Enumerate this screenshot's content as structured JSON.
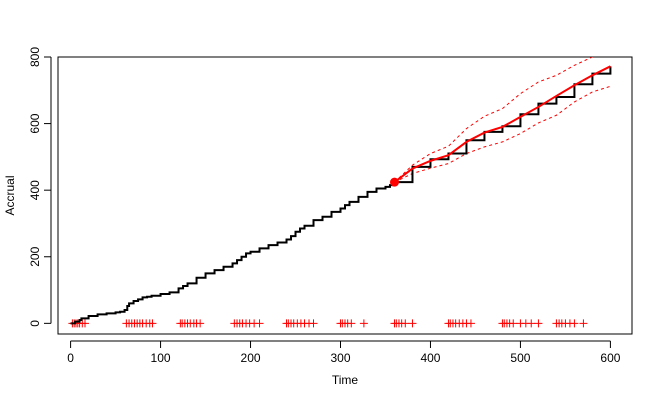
{
  "chart_data": {
    "type": "line",
    "title": "",
    "xlabel": "Time",
    "ylabel": "Accrual",
    "xlim": [
      -14,
      624
    ],
    "ylim": [
      -32,
      800
    ],
    "x_ticks": [
      0,
      100,
      200,
      300,
      400,
      500,
      600
    ],
    "y_ticks": [
      0,
      200,
      400,
      600,
      800
    ],
    "grid": false,
    "legend": "none",
    "colors": {
      "observed": "#000000",
      "prediction": "#ff0000",
      "bounds": "#ff0000",
      "events": "#ff0000"
    },
    "observed_accrual": {
      "x": [
        0,
        5,
        10,
        12,
        20,
        30,
        40,
        50,
        55,
        60,
        63,
        65,
        70,
        75,
        80,
        85,
        90,
        100,
        110,
        120,
        125,
        130,
        140,
        150,
        160,
        170,
        180,
        185,
        190,
        195,
        200,
        210,
        220,
        230,
        240,
        245,
        250,
        255,
        260,
        270,
        280,
        290,
        300,
        305,
        310,
        320,
        330,
        340,
        350,
        355,
        360
      ],
      "y": [
        0,
        5,
        10,
        15,
        22,
        27,
        30,
        33,
        35,
        40,
        52,
        60,
        67,
        72,
        78,
        80,
        83,
        88,
        93,
        105,
        112,
        120,
        137,
        150,
        160,
        170,
        180,
        190,
        200,
        210,
        215,
        225,
        235,
        243,
        252,
        262,
        275,
        285,
        293,
        310,
        320,
        335,
        345,
        355,
        365,
        380,
        395,
        405,
        410,
        415,
        424
      ]
    },
    "current_point": {
      "x": 360,
      "y": 424
    },
    "predicted_accrual": {
      "x": [
        360,
        380,
        400,
        420,
        440,
        460,
        480,
        500,
        520,
        540,
        560,
        580,
        600
      ],
      "y": [
        424,
        465,
        488,
        505,
        545,
        573,
        590,
        620,
        650,
        683,
        715,
        745,
        772
      ]
    },
    "simulated_paths": [
      {
        "x": [
          360,
          380,
          400,
          420,
          440,
          460,
          480,
          500,
          520,
          540,
          560,
          580,
          600
        ],
        "y": [
          424,
          470,
          493,
          510,
          550,
          575,
          592,
          628,
          660,
          680,
          718,
          750,
          772
        ]
      }
    ],
    "upper_bound": {
      "x": [
        360,
        380,
        400,
        420,
        440,
        460,
        480,
        500,
        520,
        540,
        560,
        580,
        600
      ],
      "y": [
        424,
        475,
        510,
        532,
        585,
        622,
        645,
        690,
        725,
        745,
        775,
        800,
        810
      ]
    },
    "lower_bound": {
      "x": [
        360,
        380,
        400,
        420,
        440,
        460,
        480,
        500,
        520,
        540,
        560,
        580,
        600
      ],
      "y": [
        424,
        450,
        466,
        480,
        510,
        530,
        545,
        570,
        602,
        625,
        665,
        695,
        712
      ]
    },
    "event_marks": {
      "y": 0,
      "x": [
        2,
        4,
        6,
        8,
        10,
        13,
        16,
        62,
        65,
        68,
        71,
        74,
        77,
        80,
        84,
        88,
        91,
        122,
        124,
        127,
        130,
        133,
        137,
        140,
        144,
        182,
        185,
        188,
        191,
        195,
        199,
        204,
        210,
        240,
        242,
        245,
        248,
        252,
        256,
        260,
        265,
        270,
        300,
        302,
        305,
        308,
        312,
        326,
        360,
        362,
        365,
        368,
        372,
        380,
        420,
        422,
        425,
        428,
        432,
        436,
        440,
        445,
        480,
        482,
        485,
        488,
        492,
        500,
        506,
        512,
        520,
        540,
        543,
        546,
        550,
        555,
        560,
        570
      ]
    }
  }
}
